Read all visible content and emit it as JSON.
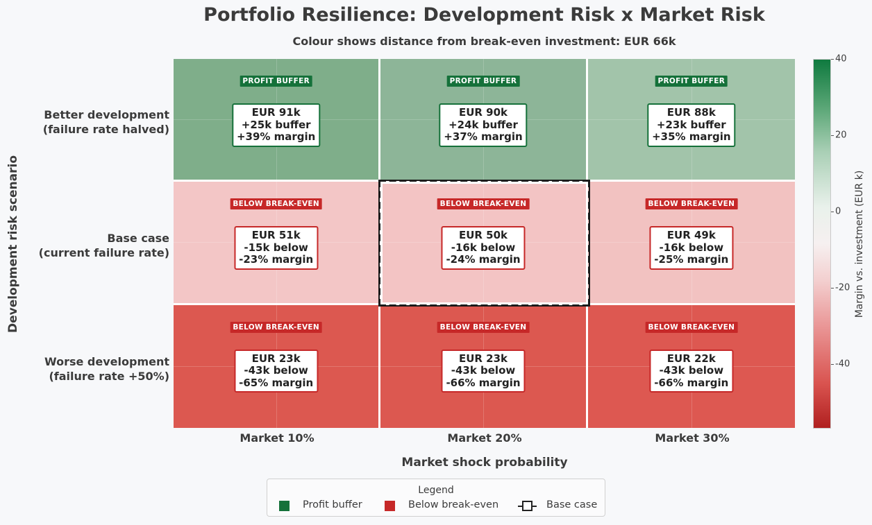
{
  "chart_data": {
    "type": "heatmap",
    "title": "Portfolio Resilience: Development Risk x Market Risk",
    "subtitle": "Colour shows distance from break-even investment: EUR 66k",
    "xlabel": "Market shock probability",
    "ylabel": "Development risk scenario",
    "x_categories": [
      "Market 10%",
      "Market 20%",
      "Market 30%"
    ],
    "y_categories": [
      "Better development\n(failure rate halved)",
      "Base case\n(current failure rate)",
      "Worse development\n(failure rate +50%)"
    ],
    "break_even_k": 66,
    "cells": [
      [
        {
          "value_k": 91,
          "diff_k": 25,
          "margin_pct": 39,
          "badge": "PROFIT BUFFER",
          "line1": "EUR 91k",
          "line2": "+25k buffer",
          "line3": "+39% margin"
        },
        {
          "value_k": 90,
          "diff_k": 24,
          "margin_pct": 37,
          "badge": "PROFIT BUFFER",
          "line1": "EUR 90k",
          "line2": "+24k buffer",
          "line3": "+37% margin"
        },
        {
          "value_k": 88,
          "diff_k": 23,
          "margin_pct": 35,
          "badge": "PROFIT BUFFER",
          "line1": "EUR 88k",
          "line2": "+23k buffer",
          "line3": "+35% margin"
        }
      ],
      [
        {
          "value_k": 51,
          "diff_k": -15,
          "margin_pct": -23,
          "badge": "BELOW BREAK-EVEN",
          "line1": "EUR 51k",
          "line2": "-15k below",
          "line3": "-23% margin"
        },
        {
          "value_k": 50,
          "diff_k": -16,
          "margin_pct": -24,
          "badge": "BELOW BREAK-EVEN",
          "line1": "EUR 50k",
          "line2": "-16k below",
          "line3": "-24% margin"
        },
        {
          "value_k": 49,
          "diff_k": -16,
          "margin_pct": -25,
          "badge": "BELOW BREAK-EVEN",
          "line1": "EUR 49k",
          "line2": "-16k below",
          "line3": "-25% margin"
        }
      ],
      [
        {
          "value_k": 23,
          "diff_k": -43,
          "margin_pct": -65,
          "badge": "BELOW BREAK-EVEN",
          "line1": "EUR 23k",
          "line2": "-43k below",
          "line3": "-65% margin"
        },
        {
          "value_k": 23,
          "diff_k": -43,
          "margin_pct": -66,
          "badge": "BELOW BREAK-EVEN",
          "line1": "EUR 23k",
          "line2": "-43k below",
          "line3": "-66% margin"
        },
        {
          "value_k": 22,
          "diff_k": -43,
          "margin_pct": -66,
          "badge": "BELOW BREAK-EVEN",
          "line1": "EUR 22k",
          "line2": "-43k below",
          "line3": "-66% margin"
        }
      ]
    ],
    "highlight_cell": {
      "row": 1,
      "col": 1
    },
    "colorbar": {
      "label": "Margin vs. investment (EUR k)",
      "range": [
        -57,
        40
      ],
      "ticks": [
        40,
        20,
        0,
        -20,
        -40
      ]
    },
    "legend": {
      "title": "Legend",
      "items": [
        "Profit buffer",
        "Below break-even",
        "Base case"
      ],
      "placement": "bottom-center"
    }
  },
  "colors": {
    "profit": "#15713a",
    "loss": "#c62828",
    "profit_cells": [
      "#7fae8a",
      "#8db598",
      "#a2c4aa"
    ],
    "loss_mid_cells": [
      "#f3c6c6",
      "#f3c4c4",
      "#f2c2c1"
    ],
    "loss_low_cells": [
      "#dc5850",
      "#dc5850",
      "#dd5851"
    ]
  }
}
